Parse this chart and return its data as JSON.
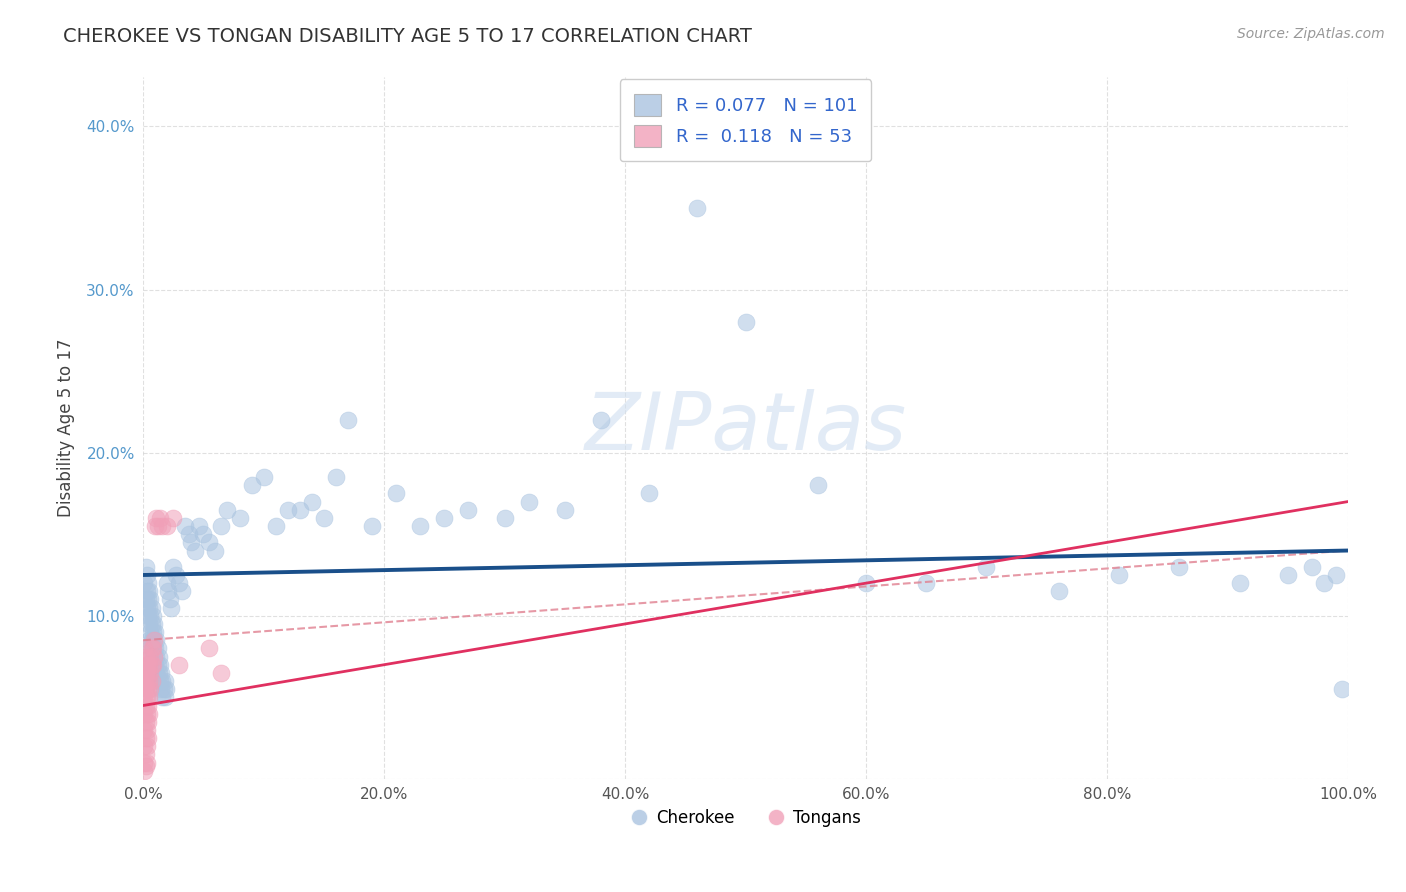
{
  "title": "CHEROKEE VS TONGAN DISABILITY AGE 5 TO 17 CORRELATION CHART",
  "source": "Source: ZipAtlas.com",
  "ylabel": "Disability Age 5 to 17",
  "xlim": [
    0.0,
    1.0
  ],
  "ylim": [
    0.0,
    0.43
  ],
  "xtick_vals": [
    0.0,
    0.2,
    0.4,
    0.6,
    0.8,
    1.0
  ],
  "ytick_vals": [
    0.0,
    0.1,
    0.2,
    0.3,
    0.4
  ],
  "xtick_labels": [
    "0.0%",
    "20.0%",
    "40.0%",
    "60.0%",
    "80.0%",
    "100.0%"
  ],
  "ytick_labels": [
    "",
    "10.0%",
    "20.0%",
    "30.0%",
    "40.0%"
  ],
  "cherokee_color": "#aac4e0",
  "tongan_color": "#f0a0b8",
  "cherokee_line_color": "#1a4f8a",
  "tongan_solid_color": "#e03060",
  "tongan_dash_color": "#e08090",
  "background_color": "#ffffff",
  "grid_color": "#cccccc",
  "title_color": "#333333",
  "ytick_color": "#5599cc",
  "legend_r_cherokee": "0.077",
  "legend_n_cherokee": "101",
  "legend_r_tongan": "0.118",
  "legend_n_tongan": "53",
  "watermark_color": "#d0dff0",
  "cherokee_x": [
    0.001,
    0.002,
    0.002,
    0.003,
    0.003,
    0.003,
    0.004,
    0.004,
    0.004,
    0.005,
    0.005,
    0.005,
    0.005,
    0.006,
    0.006,
    0.006,
    0.006,
    0.007,
    0.007,
    0.007,
    0.007,
    0.008,
    0.008,
    0.008,
    0.008,
    0.009,
    0.009,
    0.009,
    0.01,
    0.01,
    0.01,
    0.011,
    0.011,
    0.011,
    0.012,
    0.012,
    0.013,
    0.013,
    0.014,
    0.014,
    0.015,
    0.015,
    0.016,
    0.016,
    0.017,
    0.018,
    0.018,
    0.019,
    0.02,
    0.021,
    0.022,
    0.023,
    0.025,
    0.027,
    0.03,
    0.032,
    0.035,
    0.038,
    0.04,
    0.043,
    0.046,
    0.05,
    0.055,
    0.06,
    0.065,
    0.07,
    0.08,
    0.09,
    0.1,
    0.11,
    0.12,
    0.13,
    0.14,
    0.15,
    0.16,
    0.17,
    0.19,
    0.21,
    0.23,
    0.25,
    0.27,
    0.3,
    0.32,
    0.35,
    0.38,
    0.42,
    0.46,
    0.5,
    0.56,
    0.6,
    0.65,
    0.7,
    0.76,
    0.81,
    0.86,
    0.91,
    0.95,
    0.97,
    0.98,
    0.99,
    0.995
  ],
  "cherokee_y": [
    0.12,
    0.13,
    0.11,
    0.125,
    0.115,
    0.105,
    0.12,
    0.11,
    0.1,
    0.115,
    0.105,
    0.095,
    0.085,
    0.11,
    0.1,
    0.09,
    0.08,
    0.105,
    0.095,
    0.085,
    0.075,
    0.1,
    0.09,
    0.08,
    0.07,
    0.095,
    0.085,
    0.075,
    0.09,
    0.08,
    0.07,
    0.085,
    0.075,
    0.065,
    0.08,
    0.07,
    0.075,
    0.065,
    0.07,
    0.06,
    0.065,
    0.055,
    0.06,
    0.05,
    0.055,
    0.06,
    0.05,
    0.055,
    0.12,
    0.115,
    0.11,
    0.105,
    0.13,
    0.125,
    0.12,
    0.115,
    0.155,
    0.15,
    0.145,
    0.14,
    0.155,
    0.15,
    0.145,
    0.14,
    0.155,
    0.165,
    0.16,
    0.18,
    0.185,
    0.155,
    0.165,
    0.165,
    0.17,
    0.16,
    0.185,
    0.22,
    0.155,
    0.175,
    0.155,
    0.16,
    0.165,
    0.16,
    0.17,
    0.165,
    0.22,
    0.175,
    0.35,
    0.28,
    0.18,
    0.12,
    0.12,
    0.13,
    0.115,
    0.125,
    0.13,
    0.12,
    0.125,
    0.13,
    0.12,
    0.125,
    0.055
  ],
  "tongan_x": [
    0.001,
    0.001,
    0.001,
    0.001,
    0.001,
    0.001,
    0.001,
    0.001,
    0.001,
    0.002,
    0.002,
    0.002,
    0.002,
    0.002,
    0.002,
    0.002,
    0.002,
    0.003,
    0.003,
    0.003,
    0.003,
    0.003,
    0.003,
    0.003,
    0.004,
    0.004,
    0.004,
    0.004,
    0.004,
    0.005,
    0.005,
    0.005,
    0.005,
    0.006,
    0.006,
    0.006,
    0.007,
    0.007,
    0.007,
    0.008,
    0.008,
    0.009,
    0.009,
    0.01,
    0.011,
    0.012,
    0.014,
    0.016,
    0.02,
    0.025,
    0.03,
    0.055,
    0.065
  ],
  "tongan_y": [
    0.08,
    0.07,
    0.06,
    0.05,
    0.04,
    0.03,
    0.02,
    0.01,
    0.005,
    0.075,
    0.065,
    0.055,
    0.045,
    0.035,
    0.025,
    0.015,
    0.008,
    0.07,
    0.06,
    0.05,
    0.04,
    0.03,
    0.02,
    0.01,
    0.065,
    0.055,
    0.045,
    0.035,
    0.025,
    0.07,
    0.06,
    0.05,
    0.04,
    0.075,
    0.065,
    0.055,
    0.08,
    0.07,
    0.06,
    0.08,
    0.07,
    0.085,
    0.075,
    0.155,
    0.16,
    0.155,
    0.16,
    0.155,
    0.155,
    0.16,
    0.07,
    0.08,
    0.065
  ]
}
